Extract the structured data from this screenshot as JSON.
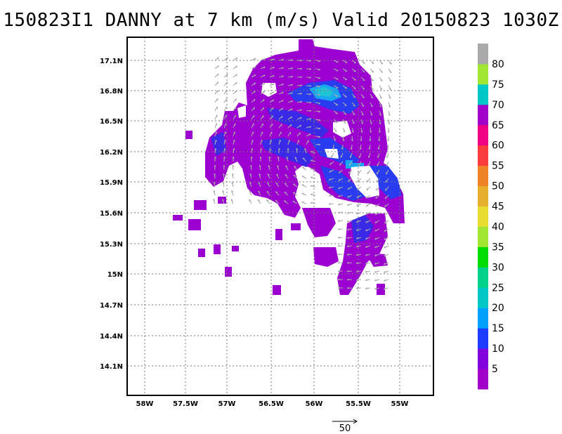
{
  "title": "150823I1 DANNY at 7 km (m/s) Valid 20150823 1030Z",
  "map": {
    "lon_ticks": [
      "58W",
      "57.5W",
      "57W",
      "56.5W",
      "56W",
      "55.5W",
      "55W"
    ],
    "lat_ticks": [
      "17.1N",
      "16.8N",
      "16.5N",
      "16.2N",
      "15.9N",
      "15.6N",
      "15.3N",
      "15N",
      "14.7N",
      "14.4N",
      "14.1N"
    ],
    "lon_range": [
      -58.1,
      -54.5
    ],
    "lat_range": [
      13.85,
      17.3
    ],
    "grid": "dotted",
    "vector_color": "#a8a8a8"
  },
  "colorbar": {
    "labels": [
      "5",
      "10",
      "15",
      "20",
      "25",
      "30",
      "35",
      "40",
      "45",
      "50",
      "55",
      "60",
      "65",
      "70",
      "75",
      "80"
    ],
    "colors": [
      "#a000c8",
      "#8200dc",
      "#1e3cff",
      "#00a0ff",
      "#00c8c8",
      "#00d28c",
      "#00dc00",
      "#a0e632",
      "#e6dc32",
      "#e6af2d",
      "#f08228",
      "#fa3c3c",
      "#f00082",
      "#a000c8",
      "#00c8c8",
      "#a0e632",
      "#aaaaaa"
    ]
  },
  "reference_vector": {
    "label": "50"
  }
}
